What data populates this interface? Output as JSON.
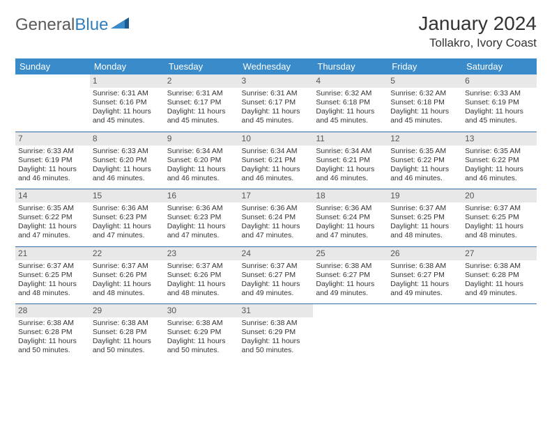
{
  "logo": {
    "general": "General",
    "blue": "Blue"
  },
  "title": "January 2024",
  "location": "Tollakro, Ivory Coast",
  "colors": {
    "header_bg": "#3a8bc9",
    "header_text": "#ffffff",
    "daynum_bg": "#e8e8e8",
    "rule": "#2f6aa0",
    "text": "#333333",
    "logo_gray": "#5a5a5a",
    "logo_blue": "#2f7fbf",
    "blue_shape": "#1e5a8e"
  },
  "weekdays": [
    "Sunday",
    "Monday",
    "Tuesday",
    "Wednesday",
    "Thursday",
    "Friday",
    "Saturday"
  ],
  "typography": {
    "body_font": "Arial",
    "title_size_pt": 21,
    "location_size_pt": 13,
    "header_size_pt": 10,
    "cell_size_pt": 8
  },
  "grid": {
    "start_weekday": 1,
    "days_in_month": 31
  },
  "days": {
    "1": {
      "sunrise": "Sunrise: 6:31 AM",
      "sunset": "Sunset: 6:16 PM",
      "daylight": "Daylight: 11 hours and 45 minutes."
    },
    "2": {
      "sunrise": "Sunrise: 6:31 AM",
      "sunset": "Sunset: 6:17 PM",
      "daylight": "Daylight: 11 hours and 45 minutes."
    },
    "3": {
      "sunrise": "Sunrise: 6:31 AM",
      "sunset": "Sunset: 6:17 PM",
      "daylight": "Daylight: 11 hours and 45 minutes."
    },
    "4": {
      "sunrise": "Sunrise: 6:32 AM",
      "sunset": "Sunset: 6:18 PM",
      "daylight": "Daylight: 11 hours and 45 minutes."
    },
    "5": {
      "sunrise": "Sunrise: 6:32 AM",
      "sunset": "Sunset: 6:18 PM",
      "daylight": "Daylight: 11 hours and 45 minutes."
    },
    "6": {
      "sunrise": "Sunrise: 6:33 AM",
      "sunset": "Sunset: 6:19 PM",
      "daylight": "Daylight: 11 hours and 45 minutes."
    },
    "7": {
      "sunrise": "Sunrise: 6:33 AM",
      "sunset": "Sunset: 6:19 PM",
      "daylight": "Daylight: 11 hours and 46 minutes."
    },
    "8": {
      "sunrise": "Sunrise: 6:33 AM",
      "sunset": "Sunset: 6:20 PM",
      "daylight": "Daylight: 11 hours and 46 minutes."
    },
    "9": {
      "sunrise": "Sunrise: 6:34 AM",
      "sunset": "Sunset: 6:20 PM",
      "daylight": "Daylight: 11 hours and 46 minutes."
    },
    "10": {
      "sunrise": "Sunrise: 6:34 AM",
      "sunset": "Sunset: 6:21 PM",
      "daylight": "Daylight: 11 hours and 46 minutes."
    },
    "11": {
      "sunrise": "Sunrise: 6:34 AM",
      "sunset": "Sunset: 6:21 PM",
      "daylight": "Daylight: 11 hours and 46 minutes."
    },
    "12": {
      "sunrise": "Sunrise: 6:35 AM",
      "sunset": "Sunset: 6:22 PM",
      "daylight": "Daylight: 11 hours and 46 minutes."
    },
    "13": {
      "sunrise": "Sunrise: 6:35 AM",
      "sunset": "Sunset: 6:22 PM",
      "daylight": "Daylight: 11 hours and 46 minutes."
    },
    "14": {
      "sunrise": "Sunrise: 6:35 AM",
      "sunset": "Sunset: 6:22 PM",
      "daylight": "Daylight: 11 hours and 47 minutes."
    },
    "15": {
      "sunrise": "Sunrise: 6:36 AM",
      "sunset": "Sunset: 6:23 PM",
      "daylight": "Daylight: 11 hours and 47 minutes."
    },
    "16": {
      "sunrise": "Sunrise: 6:36 AM",
      "sunset": "Sunset: 6:23 PM",
      "daylight": "Daylight: 11 hours and 47 minutes."
    },
    "17": {
      "sunrise": "Sunrise: 6:36 AM",
      "sunset": "Sunset: 6:24 PM",
      "daylight": "Daylight: 11 hours and 47 minutes."
    },
    "18": {
      "sunrise": "Sunrise: 6:36 AM",
      "sunset": "Sunset: 6:24 PM",
      "daylight": "Daylight: 11 hours and 47 minutes."
    },
    "19": {
      "sunrise": "Sunrise: 6:37 AM",
      "sunset": "Sunset: 6:25 PM",
      "daylight": "Daylight: 11 hours and 48 minutes."
    },
    "20": {
      "sunrise": "Sunrise: 6:37 AM",
      "sunset": "Sunset: 6:25 PM",
      "daylight": "Daylight: 11 hours and 48 minutes."
    },
    "21": {
      "sunrise": "Sunrise: 6:37 AM",
      "sunset": "Sunset: 6:25 PM",
      "daylight": "Daylight: 11 hours and 48 minutes."
    },
    "22": {
      "sunrise": "Sunrise: 6:37 AM",
      "sunset": "Sunset: 6:26 PM",
      "daylight": "Daylight: 11 hours and 48 minutes."
    },
    "23": {
      "sunrise": "Sunrise: 6:37 AM",
      "sunset": "Sunset: 6:26 PM",
      "daylight": "Daylight: 11 hours and 48 minutes."
    },
    "24": {
      "sunrise": "Sunrise: 6:37 AM",
      "sunset": "Sunset: 6:27 PM",
      "daylight": "Daylight: 11 hours and 49 minutes."
    },
    "25": {
      "sunrise": "Sunrise: 6:38 AM",
      "sunset": "Sunset: 6:27 PM",
      "daylight": "Daylight: 11 hours and 49 minutes."
    },
    "26": {
      "sunrise": "Sunrise: 6:38 AM",
      "sunset": "Sunset: 6:27 PM",
      "daylight": "Daylight: 11 hours and 49 minutes."
    },
    "27": {
      "sunrise": "Sunrise: 6:38 AM",
      "sunset": "Sunset: 6:28 PM",
      "daylight": "Daylight: 11 hours and 49 minutes."
    },
    "28": {
      "sunrise": "Sunrise: 6:38 AM",
      "sunset": "Sunset: 6:28 PM",
      "daylight": "Daylight: 11 hours and 50 minutes."
    },
    "29": {
      "sunrise": "Sunrise: 6:38 AM",
      "sunset": "Sunset: 6:28 PM",
      "daylight": "Daylight: 11 hours and 50 minutes."
    },
    "30": {
      "sunrise": "Sunrise: 6:38 AM",
      "sunset": "Sunset: 6:29 PM",
      "daylight": "Daylight: 11 hours and 50 minutes."
    },
    "31": {
      "sunrise": "Sunrise: 6:38 AM",
      "sunset": "Sunset: 6:29 PM",
      "daylight": "Daylight: 11 hours and 50 minutes."
    }
  }
}
